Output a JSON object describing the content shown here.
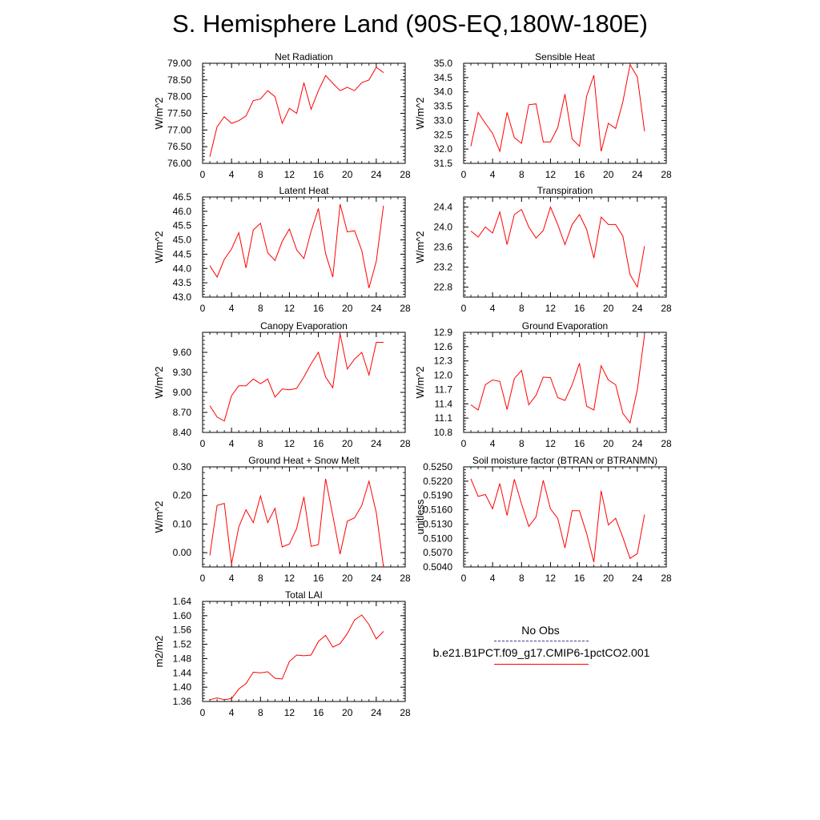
{
  "page_title": "S. Hemisphere Land (90S-EQ,180W-180E)",
  "legend": {
    "obs_label": "No Obs",
    "model_label": "b.e21.B1PCT.f09_g17.CMIP6-1pctCO2.001",
    "obs_color": "#3c3c8c",
    "model_color": "#ff0000"
  },
  "line_color": "#ff0000",
  "chart_data": [
    {
      "type": "line",
      "title": "Net Radiation",
      "ylabel": "W/m^2",
      "xlim": [
        0,
        28
      ],
      "xticks": [
        0,
        4,
        8,
        12,
        16,
        20,
        24,
        28
      ],
      "ylim": [
        76.0,
        79.0
      ],
      "yticks": [
        "76.00",
        "76.50",
        "77.00",
        "77.50",
        "78.00",
        "78.50",
        "79.00"
      ],
      "x": [
        1,
        2,
        3,
        4,
        5,
        6,
        7,
        8,
        9,
        10,
        11,
        12,
        13,
        14,
        15,
        16,
        17,
        18,
        19,
        20,
        21,
        22,
        23,
        24,
        25
      ],
      "values": [
        76.2,
        77.1,
        77.4,
        77.2,
        77.28,
        77.42,
        77.88,
        77.93,
        78.18,
        78.0,
        77.2,
        77.65,
        77.5,
        78.42,
        77.62,
        78.18,
        78.63,
        78.4,
        78.18,
        78.28,
        78.18,
        78.42,
        78.5,
        78.88,
        78.72
      ]
    },
    {
      "type": "line",
      "title": "Sensible Heat",
      "ylabel": "W/m^2",
      "xlim": [
        0,
        28
      ],
      "xticks": [
        0,
        4,
        8,
        12,
        16,
        20,
        24,
        28
      ],
      "ylim": [
        31.5,
        35.0
      ],
      "yticks": [
        "31.5",
        "32.0",
        "32.5",
        "33.0",
        "33.5",
        "34.0",
        "34.5",
        "35.0"
      ],
      "x": [
        1,
        2,
        3,
        4,
        5,
        6,
        7,
        8,
        9,
        10,
        11,
        12,
        13,
        14,
        15,
        16,
        17,
        18,
        19,
        20,
        21,
        22,
        23,
        24,
        25
      ],
      "values": [
        32.1,
        33.28,
        32.9,
        32.55,
        31.92,
        33.28,
        32.4,
        32.2,
        33.55,
        33.58,
        32.25,
        32.25,
        32.75,
        33.92,
        32.35,
        32.1,
        33.85,
        34.58,
        31.92,
        32.9,
        32.72,
        33.65,
        34.95,
        34.52,
        32.62
      ]
    },
    {
      "type": "line",
      "title": "Latent Heat",
      "ylabel": "W/m^2",
      "xlim": [
        0,
        28
      ],
      "xticks": [
        0,
        4,
        8,
        12,
        16,
        20,
        24,
        28
      ],
      "ylim": [
        43.0,
        46.5
      ],
      "yticks": [
        "43.0",
        "43.5",
        "44.0",
        "44.5",
        "45.0",
        "45.5",
        "46.0",
        "46.5"
      ],
      "x": [
        1,
        2,
        3,
        4,
        5,
        6,
        7,
        8,
        9,
        10,
        11,
        12,
        13,
        14,
        15,
        16,
        17,
        18,
        19,
        20,
        21,
        22,
        23,
        24,
        25
      ],
      "values": [
        44.1,
        43.7,
        44.32,
        44.68,
        45.25,
        44.02,
        45.35,
        45.58,
        44.55,
        44.28,
        44.95,
        45.38,
        44.65,
        44.35,
        45.3,
        46.1,
        44.52,
        43.7,
        46.25,
        45.28,
        45.32,
        44.62,
        43.32,
        44.25,
        46.2
      ]
    },
    {
      "type": "line",
      "title": "Transpiration",
      "ylabel": "W/m^2",
      "xlim": [
        0,
        28
      ],
      "xticks": [
        0,
        4,
        8,
        12,
        16,
        20,
        24,
        28
      ],
      "ylim": [
        22.6,
        24.6
      ],
      "yticks": [
        "22.8",
        "23.2",
        "23.6",
        "24.0",
        "24.4"
      ],
      "x": [
        1,
        2,
        3,
        4,
        5,
        6,
        7,
        8,
        9,
        10,
        11,
        12,
        13,
        14,
        15,
        16,
        17,
        18,
        19,
        20,
        21,
        22,
        23,
        24,
        25
      ],
      "values": [
        23.92,
        23.8,
        24.0,
        23.88,
        24.3,
        23.65,
        24.25,
        24.35,
        24.0,
        23.78,
        23.93,
        24.4,
        24.05,
        23.65,
        24.05,
        24.25,
        23.95,
        23.38,
        24.2,
        24.05,
        24.05,
        23.82,
        23.05,
        22.8,
        23.62
      ]
    },
    {
      "type": "line",
      "title": "Canopy Evaporation",
      "ylabel": "W/m^2",
      "xlim": [
        0,
        28
      ],
      "xticks": [
        0,
        4,
        8,
        12,
        16,
        20,
        24,
        28
      ],
      "ylim": [
        8.4,
        9.9
      ],
      "yticks": [
        "8.40",
        "8.70",
        "9.00",
        "9.30",
        "9.60"
      ],
      "x": [
        1,
        2,
        3,
        4,
        5,
        6,
        7,
        8,
        9,
        10,
        11,
        12,
        13,
        14,
        15,
        16,
        17,
        18,
        19,
        20,
        21,
        22,
        23,
        24,
        25
      ],
      "values": [
        8.8,
        8.63,
        8.57,
        8.95,
        9.1,
        9.1,
        9.2,
        9.13,
        9.2,
        8.93,
        9.05,
        9.04,
        9.06,
        9.23,
        9.43,
        9.6,
        9.23,
        9.07,
        9.88,
        9.35,
        9.5,
        9.6,
        9.26,
        9.75,
        9.75
      ]
    },
    {
      "type": "line",
      "title": "Ground Evaporation",
      "ylabel": "W/m^2",
      "xlim": [
        0,
        28
      ],
      "xticks": [
        0,
        4,
        8,
        12,
        16,
        20,
        24,
        28
      ],
      "ylim": [
        10.8,
        12.9
      ],
      "yticks": [
        "10.8",
        "11.1",
        "11.4",
        "11.7",
        "12.0",
        "12.3",
        "12.6",
        "12.9"
      ],
      "x": [
        1,
        2,
        3,
        4,
        5,
        6,
        7,
        8,
        9,
        10,
        11,
        12,
        13,
        14,
        15,
        16,
        17,
        18,
        19,
        20,
        21,
        22,
        23,
        24,
        25
      ],
      "values": [
        11.38,
        11.27,
        11.8,
        11.9,
        11.87,
        11.28,
        11.93,
        12.1,
        11.38,
        11.58,
        11.96,
        11.95,
        11.53,
        11.47,
        11.8,
        12.25,
        11.35,
        11.27,
        12.2,
        11.9,
        11.8,
        11.2,
        11.0,
        11.7,
        12.85
      ]
    },
    {
      "type": "line",
      "title": "Ground Heat + Snow Melt",
      "ylabel": "W/m^2",
      "xlim": [
        0,
        28
      ],
      "xticks": [
        0,
        4,
        8,
        12,
        16,
        20,
        24,
        28
      ],
      "ylim": [
        -0.05,
        0.3
      ],
      "yticks": [
        "0.00",
        "0.10",
        "0.20",
        "0.30"
      ],
      "x": [
        1,
        2,
        3,
        4,
        5,
        6,
        7,
        8,
        9,
        10,
        11,
        12,
        13,
        14,
        15,
        16,
        17,
        18,
        19,
        20,
        21,
        22,
        23,
        24,
        25
      ],
      "values": [
        -0.01,
        0.165,
        0.172,
        -0.04,
        0.09,
        0.15,
        0.105,
        0.198,
        0.105,
        0.155,
        0.02,
        0.03,
        0.085,
        0.195,
        0.022,
        0.028,
        0.258,
        0.13,
        -0.005,
        0.11,
        0.122,
        0.165,
        0.25,
        0.14,
        -0.05
      ]
    },
    {
      "type": "line",
      "title": "Soil moisture factor (BTRAN or BTRANMN)",
      "ylabel": "unitless",
      "xlim": [
        0,
        28
      ],
      "xticks": [
        0,
        4,
        8,
        12,
        16,
        20,
        24,
        28
      ],
      "ylim": [
        0.504,
        0.525
      ],
      "yticks": [
        "0.5040",
        "0.5070",
        "0.5100",
        "0.5130",
        "0.5160",
        "0.5190",
        "0.5220",
        "0.5250"
      ],
      "x": [
        1,
        2,
        3,
        4,
        5,
        6,
        7,
        8,
        9,
        10,
        11,
        12,
        13,
        14,
        15,
        16,
        17,
        18,
        19,
        20,
        21,
        22,
        23,
        24,
        25
      ],
      "values": [
        0.5225,
        0.5188,
        0.5192,
        0.5162,
        0.5215,
        0.5148,
        0.5224,
        0.5172,
        0.5125,
        0.5145,
        0.5222,
        0.5162,
        0.5142,
        0.508,
        0.5158,
        0.5158,
        0.511,
        0.505,
        0.52,
        0.5128,
        0.5142,
        0.5102,
        0.5058,
        0.5068,
        0.515
      ]
    },
    {
      "type": "line",
      "title": "Total LAI",
      "ylabel": "m2/m2",
      "xlim": [
        0,
        28
      ],
      "xticks": [
        0,
        4,
        8,
        12,
        16,
        20,
        24,
        28
      ],
      "ylim": [
        1.36,
        1.64
      ],
      "yticks": [
        "1.36",
        "1.40",
        "1.44",
        "1.48",
        "1.52",
        "1.56",
        "1.60",
        "1.64"
      ],
      "x": [
        1,
        2,
        3,
        4,
        5,
        6,
        7,
        8,
        9,
        10,
        11,
        12,
        13,
        14,
        15,
        16,
        17,
        18,
        19,
        20,
        21,
        22,
        23,
        24,
        25
      ],
      "values": [
        1.365,
        1.37,
        1.365,
        1.368,
        1.395,
        1.41,
        1.442,
        1.44,
        1.443,
        1.425,
        1.423,
        1.472,
        1.49,
        1.488,
        1.49,
        1.528,
        1.545,
        1.512,
        1.522,
        1.55,
        1.588,
        1.602,
        1.575,
        1.535,
        1.556
      ]
    }
  ]
}
